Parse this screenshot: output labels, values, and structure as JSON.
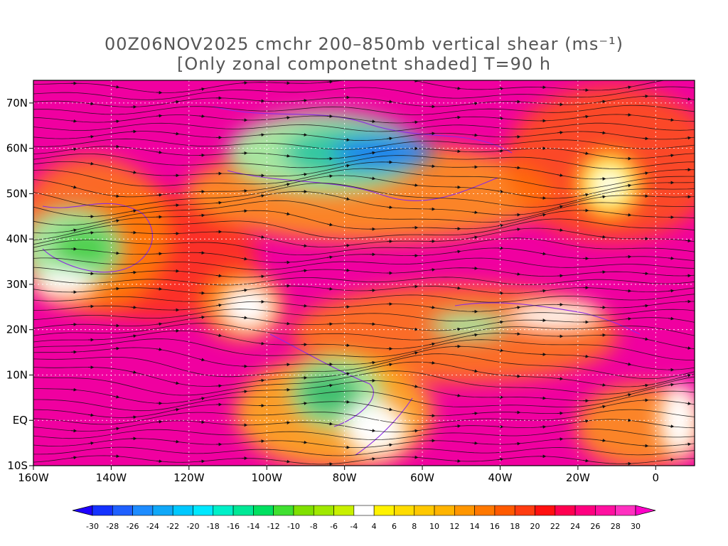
{
  "title": {
    "line1": "00Z06NOV2025 cmchr 200–850mb vertical shear (ms⁻¹)",
    "line2": "[Only zonal componetnt shaded] T=90 h"
  },
  "map": {
    "lon_range": [
      -160,
      10
    ],
    "lat_range": [
      -10,
      75
    ],
    "lon_ticks": [
      {
        "lon": -160,
        "label": "160W"
      },
      {
        "lon": -140,
        "label": "140W"
      },
      {
        "lon": -120,
        "label": "120W"
      },
      {
        "lon": -100,
        "label": "100W"
      },
      {
        "lon": -80,
        "label": "80W"
      },
      {
        "lon": -60,
        "label": "60W"
      },
      {
        "lon": -40,
        "label": "40W"
      },
      {
        "lon": -20,
        "label": "20W"
      },
      {
        "lon": 0,
        "label": "0"
      }
    ],
    "lat_ticks": [
      {
        "lat": 70,
        "label": "70N"
      },
      {
        "lat": 60,
        "label": "60N"
      },
      {
        "lat": 50,
        "label": "50N"
      },
      {
        "lat": 40,
        "label": "40N"
      },
      {
        "lat": 30,
        "label": "30N"
      },
      {
        "lat": 20,
        "label": "20N"
      },
      {
        "lat": 10,
        "label": "10N"
      },
      {
        "lat": 0,
        "label": "EQ"
      },
      {
        "lat": -10,
        "label": "10S"
      }
    ],
    "shading_regions": [
      {
        "color": "#a8e6a0",
        "lon": -85,
        "lat": 59,
        "rx_deg": 25,
        "ry_deg": 9
      },
      {
        "color": "#30c8a0",
        "lon": -78,
        "lat": 59,
        "rx_deg": 18,
        "ry_deg": 6
      },
      {
        "color": "#1a7ff0",
        "lon": -70,
        "lat": 59,
        "rx_deg": 13,
        "ry_deg": 3.5
      },
      {
        "color": "#a8e6a0",
        "lon": -150,
        "lat": 38,
        "rx_deg": 13,
        "ry_deg": 9
      },
      {
        "color": "#50d050",
        "lon": -147,
        "lat": 38,
        "rx_deg": 8,
        "ry_deg": 5
      },
      {
        "color": "#ffffff",
        "lon": -152,
        "lat": 30,
        "rx_deg": 8,
        "ry_deg": 3
      },
      {
        "color": "#a8e6a0",
        "lon": -82,
        "lat": 6,
        "rx_deg": 12,
        "ry_deg": 8
      },
      {
        "color": "#40c070",
        "lon": -84,
        "lat": 6,
        "rx_deg": 8,
        "ry_deg": 5
      },
      {
        "color": "#ffffff",
        "lon": -72,
        "lat": -2,
        "rx_deg": 8,
        "ry_deg": 6
      },
      {
        "color": "#a8e6a0",
        "lon": -48,
        "lat": 21,
        "rx_deg": 10,
        "ry_deg": 3
      },
      {
        "color": "#ffffff",
        "lon": -26,
        "lat": 23,
        "rx_deg": 12,
        "ry_deg": 3
      },
      {
        "color": "#ffffff",
        "lon": -105,
        "lat": 25,
        "rx_deg": 7,
        "ry_deg": 5
      },
      {
        "color": "#fff200",
        "lon": -12,
        "lat": 52,
        "rx_deg": 8,
        "ry_deg": 7
      },
      {
        "color": "#ffffff",
        "lon": -12,
        "lat": 52,
        "rx_deg": 4,
        "ry_deg": 3
      },
      {
        "color": "#ffffff",
        "lon": 6,
        "lat": 0,
        "rx_deg": 5,
        "ry_deg": 8
      }
    ],
    "streamline_color": "#111111",
    "contour_color": "#8a2be2"
  },
  "colorbar": {
    "levels": [
      "-30",
      "-28",
      "-26",
      "-24",
      "-22",
      "-20",
      "-18",
      "-16",
      "-14",
      "-12",
      "-10",
      "-8",
      "-6",
      "-4",
      "4",
      "6",
      "8",
      "10",
      "12",
      "14",
      "16",
      "18",
      "20",
      "22",
      "24",
      "26",
      "28",
      "30"
    ],
    "colors": [
      "#1e00ff",
      "#1432ff",
      "#1f60ff",
      "#1e8cff",
      "#10a8f8",
      "#00c8ff",
      "#00e8ff",
      "#00f0c8",
      "#00e896",
      "#00e060",
      "#40e030",
      "#80e000",
      "#a0e800",
      "#c8f000",
      "#ffffff",
      "#fff200",
      "#ffdc00",
      "#ffc800",
      "#ffb400",
      "#ff9600",
      "#ff7800",
      "#ff5a00",
      "#ff3c10",
      "#ff1010",
      "#ff0050",
      "#ff0080",
      "#ff10a0",
      "#ff30c0",
      "#ff00c8"
    ]
  }
}
